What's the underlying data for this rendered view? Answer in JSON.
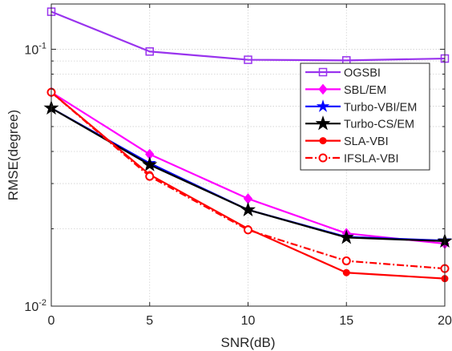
{
  "chart_data": {
    "type": "line",
    "xlabel": "SNR(dB)",
    "ylabel": "RMSE(degree)",
    "yscale": "log",
    "xlim": [
      0,
      20
    ],
    "ylim": [
      0.01,
      0.15
    ],
    "grid": true,
    "legend_position": "right",
    "x_ticks": [
      {
        "value": 0,
        "label": "0"
      },
      {
        "value": 5,
        "label": "5"
      },
      {
        "value": 10,
        "label": "10"
      },
      {
        "value": 15,
        "label": "15"
      },
      {
        "value": 20,
        "label": "20"
      }
    ],
    "y_ticks": [
      {
        "value": 0.01,
        "base": "10",
        "exp": "-2"
      },
      {
        "value": 0.1,
        "base": "10",
        "exp": "-1"
      }
    ],
    "x": [
      0,
      5,
      10,
      15,
      20
    ],
    "series": [
      {
        "name": "OGSBI",
        "values": [
          0.14,
          0.098,
          0.091,
          0.0905,
          0.092
        ],
        "color": "#9933ee",
        "marker": "square",
        "dash": "solid"
      },
      {
        "name": "SBL/EM",
        "values": [
          0.068,
          0.039,
          0.0262,
          0.0192,
          0.0175
        ],
        "color": "#ff00ff",
        "marker": "diamond",
        "dash": "solid"
      },
      {
        "name": "Turbo-VBI/EM",
        "values": [
          0.059,
          0.036,
          0.0237,
          0.0186,
          0.018
        ],
        "color": "#0000ff",
        "marker": "star",
        "dash": "solid"
      },
      {
        "name": "Turbo-CS/EM",
        "values": [
          0.059,
          0.0355,
          0.0237,
          0.0185,
          0.0179
        ],
        "color": "#000000",
        "marker": "pentagram",
        "dash": "solid"
      },
      {
        "name": "SLA-VBI",
        "values": [
          0.068,
          0.0325,
          0.02,
          0.0135,
          0.0128
        ],
        "color": "#ff0000",
        "marker": "dot",
        "dash": "solid"
      },
      {
        "name": "IFSLA-VBI",
        "values": [
          0.068,
          0.032,
          0.0198,
          0.015,
          0.014
        ],
        "color": "#ff0000",
        "marker": "circle",
        "dash": "dashdot"
      }
    ]
  }
}
